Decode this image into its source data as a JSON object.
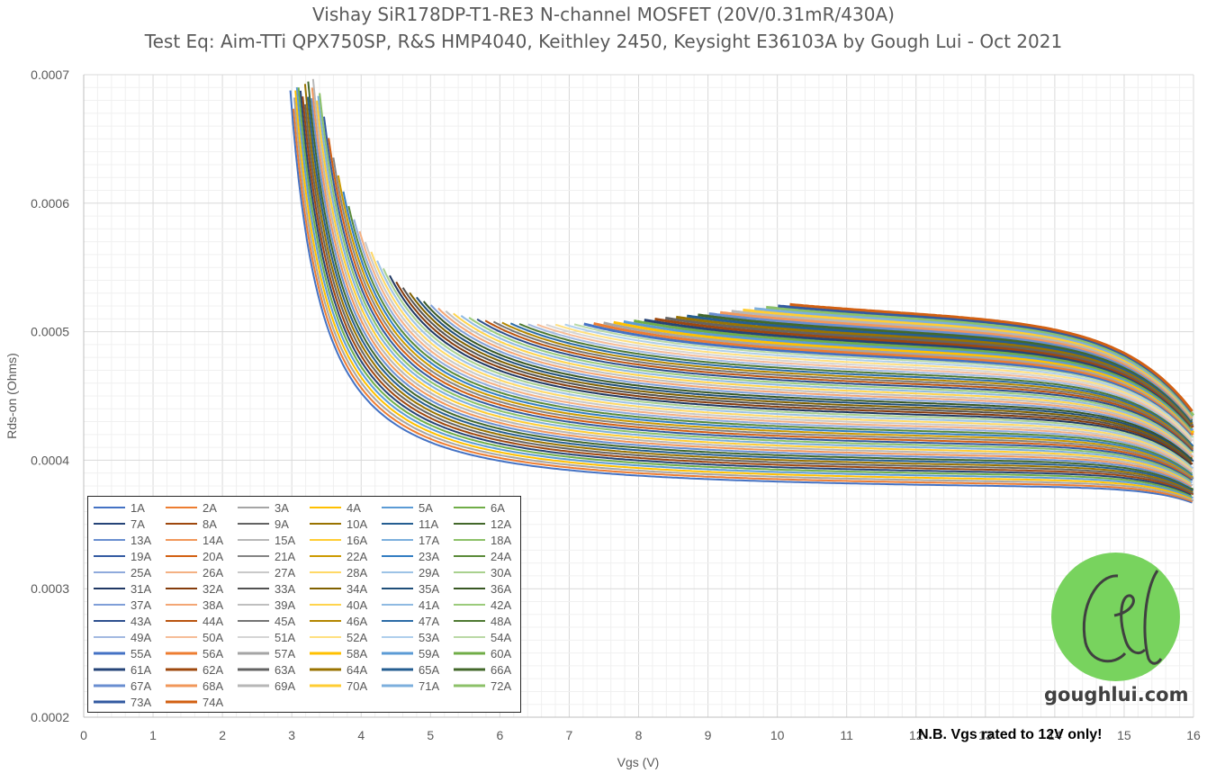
{
  "chart_data": {
    "type": "line",
    "title": "Vishay SiR178DP-T1-RE3 N-channel MOSFET (20V/0.31mR/430A)",
    "subtitle": "Test Eq: Aim-TTi QPX750SP, R&S HMP4040, Keithley 2450, Keysight E36103A by Gough Lui - Oct 2021",
    "xlabel": "Vgs (V)",
    "ylabel": "Rds-on (Ohms)",
    "xlim": [
      0,
      16
    ],
    "ylim": [
      0.0002,
      0.0007
    ],
    "x_ticks": [
      "0",
      "1",
      "2",
      "3",
      "4",
      "5",
      "6",
      "7",
      "8",
      "9",
      "10",
      "11",
      "12",
      "13",
      "14",
      "15",
      "16"
    ],
    "y_ticks": [
      "0.0002",
      "0.0003",
      "0.0004",
      "0.0005",
      "0.0006",
      "0.0007"
    ],
    "grid": "major and minor",
    "legend_position": "bottom-left",
    "series_summary": "74 series, currents 1A to 74A; the lowest current trace flattens near 0.00039 Ohms at 16V and the highest (74A) begins at Vgs 10.2V near 0.00055 Ohms ending about 0.00044 Ohms at 16V",
    "series": [
      {
        "name": "1A",
        "start": [
          2.8,
          0.0007
        ],
        "end": [
          16,
          0.000387
        ]
      },
      {
        "name": "2A"
      },
      {
        "name": "3A"
      },
      {
        "name": "4A"
      },
      {
        "name": "5A"
      },
      {
        "name": "6A"
      },
      {
        "name": "7A"
      },
      {
        "name": "8A"
      },
      {
        "name": "9A"
      },
      {
        "name": "10A"
      },
      {
        "name": "11A"
      },
      {
        "name": "12A"
      },
      {
        "name": "13A"
      },
      {
        "name": "14A"
      },
      {
        "name": "15A"
      },
      {
        "name": "16A"
      },
      {
        "name": "17A"
      },
      {
        "name": "18A"
      },
      {
        "name": "19A"
      },
      {
        "name": "20A"
      },
      {
        "name": "21A"
      },
      {
        "name": "22A"
      },
      {
        "name": "23A"
      },
      {
        "name": "24A"
      },
      {
        "name": "25A"
      },
      {
        "name": "26A"
      },
      {
        "name": "27A"
      },
      {
        "name": "28A"
      },
      {
        "name": "29A"
      },
      {
        "name": "30A"
      },
      {
        "name": "31A"
      },
      {
        "name": "32A"
      },
      {
        "name": "33A"
      },
      {
        "name": "34A"
      },
      {
        "name": "35A"
      },
      {
        "name": "36A"
      },
      {
        "name": "37A"
      },
      {
        "name": "38A"
      },
      {
        "name": "39A"
      },
      {
        "name": "40A"
      },
      {
        "name": "41A"
      },
      {
        "name": "42A"
      },
      {
        "name": "43A"
      },
      {
        "name": "44A"
      },
      {
        "name": "45A"
      },
      {
        "name": "46A"
      },
      {
        "name": "47A"
      },
      {
        "name": "48A"
      },
      {
        "name": "49A"
      },
      {
        "name": "50A"
      },
      {
        "name": "51A"
      },
      {
        "name": "52A"
      },
      {
        "name": "53A"
      },
      {
        "name": "54A"
      },
      {
        "name": "55A"
      },
      {
        "name": "56A"
      },
      {
        "name": "57A"
      },
      {
        "name": "58A"
      },
      {
        "name": "59A"
      },
      {
        "name": "60A"
      },
      {
        "name": "61A"
      },
      {
        "name": "62A"
      },
      {
        "name": "63A"
      },
      {
        "name": "64A"
      },
      {
        "name": "65A"
      },
      {
        "name": "66A"
      },
      {
        "name": "67A"
      },
      {
        "name": "68A"
      },
      {
        "name": "69A"
      },
      {
        "name": "70A"
      },
      {
        "name": "71A"
      },
      {
        "name": "72A"
      },
      {
        "name": "73A"
      },
      {
        "name": "74A",
        "start": [
          10.2,
          0.000548
        ],
        "end": [
          16,
          0.00044
        ]
      }
    ],
    "palette": [
      "#4472c4",
      "#ed7d31",
      "#a5a5a5",
      "#ffc000",
      "#5b9bd5",
      "#70ad47",
      "#264478",
      "#9e480e",
      "#636363",
      "#997300",
      "#255e91",
      "#43682b",
      "#698ed0",
      "#f1975a",
      "#b7b7b7",
      "#ffcd33",
      "#7cafdd",
      "#8cc168",
      "#335aa1",
      "#d26012",
      "#848484",
      "#cc9a00",
      "#327dc2",
      "#5a8a39",
      "#8faadc",
      "#f4b183",
      "#c9c9c9",
      "#ffd966",
      "#9dc3e6",
      "#a9d18e",
      "#203864",
      "#843c0c",
      "#525252",
      "#7f6000",
      "#1f4e79",
      "#385723",
      "#7f9fd8",
      "#f3a675",
      "#bfbfbf",
      "#ffd44d",
      "#8fbae2",
      "#9bcb7b",
      "#2d4f8e",
      "#b9540f",
      "#747474",
      "#b38600",
      "#2b6ba6",
      "#4e7932",
      "#a2b9e1",
      "#f6bd98",
      "#d5d5d5",
      "#ffe080",
      "#afcfec",
      "#bad9a5"
    ],
    "note": "N.B. Vgs rated to 12V only!"
  },
  "logo": {
    "text": "goughlui.com",
    "glyph": "Gl"
  }
}
